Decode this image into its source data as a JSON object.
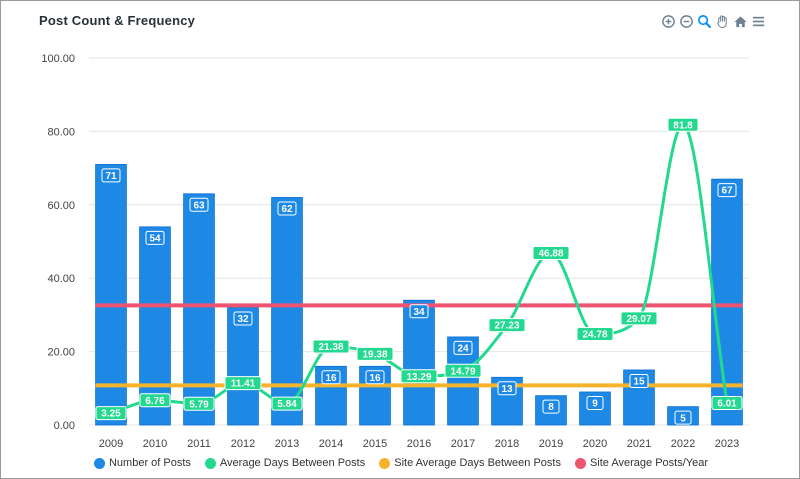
{
  "chart_data": {
    "type": "bar",
    "title": "Post Count & Frequency",
    "xlabel": "",
    "ylabel": "",
    "ylim": [
      0,
      100
    ],
    "yticks": [
      "0.00",
      "20.00",
      "40.00",
      "60.00",
      "80.00",
      "100.00"
    ],
    "categories": [
      "2009",
      "2010",
      "2011",
      "2012",
      "2013",
      "2014",
      "2015",
      "2016",
      "2017",
      "2018",
      "2019",
      "2020",
      "2021",
      "2022",
      "2023"
    ],
    "series": [
      {
        "name": "Number of Posts",
        "type": "bar",
        "color": "#1e88e5",
        "values": [
          71,
          54,
          63,
          32,
          62,
          16,
          16,
          34,
          24,
          13,
          8,
          9,
          15,
          5,
          67
        ]
      },
      {
        "name": "Average Days Between Posts",
        "type": "line",
        "color": "#22d98f",
        "values": [
          3.25,
          6.76,
          5.79,
          11.41,
          5.84,
          21.38,
          19.38,
          13.29,
          14.79,
          27.23,
          46.88,
          24.78,
          29.07,
          81.8,
          6.01
        ]
      },
      {
        "name": "Site Average Days Between Posts",
        "type": "line",
        "color": "#f7b32b",
        "values": [
          10.8,
          10.8,
          10.8,
          10.8,
          10.8,
          10.8,
          10.8,
          10.8,
          10.8,
          10.8,
          10.8,
          10.8,
          10.8,
          10.8,
          10.8
        ]
      },
      {
        "name": "Site Average Posts/Year",
        "type": "line",
        "color": "#ee5470",
        "values": [
          32.6,
          32.6,
          32.6,
          32.6,
          32.6,
          32.6,
          32.6,
          32.6,
          32.6,
          32.6,
          32.6,
          32.6,
          32.6,
          32.6,
          32.6
        ]
      }
    ],
    "grid": true,
    "legend": "bottom"
  },
  "toolbar": {
    "icons": [
      "zoom-in-icon",
      "zoom-out-icon",
      "magnifier-icon",
      "pan-hand-icon",
      "home-icon",
      "menu-icon"
    ]
  }
}
